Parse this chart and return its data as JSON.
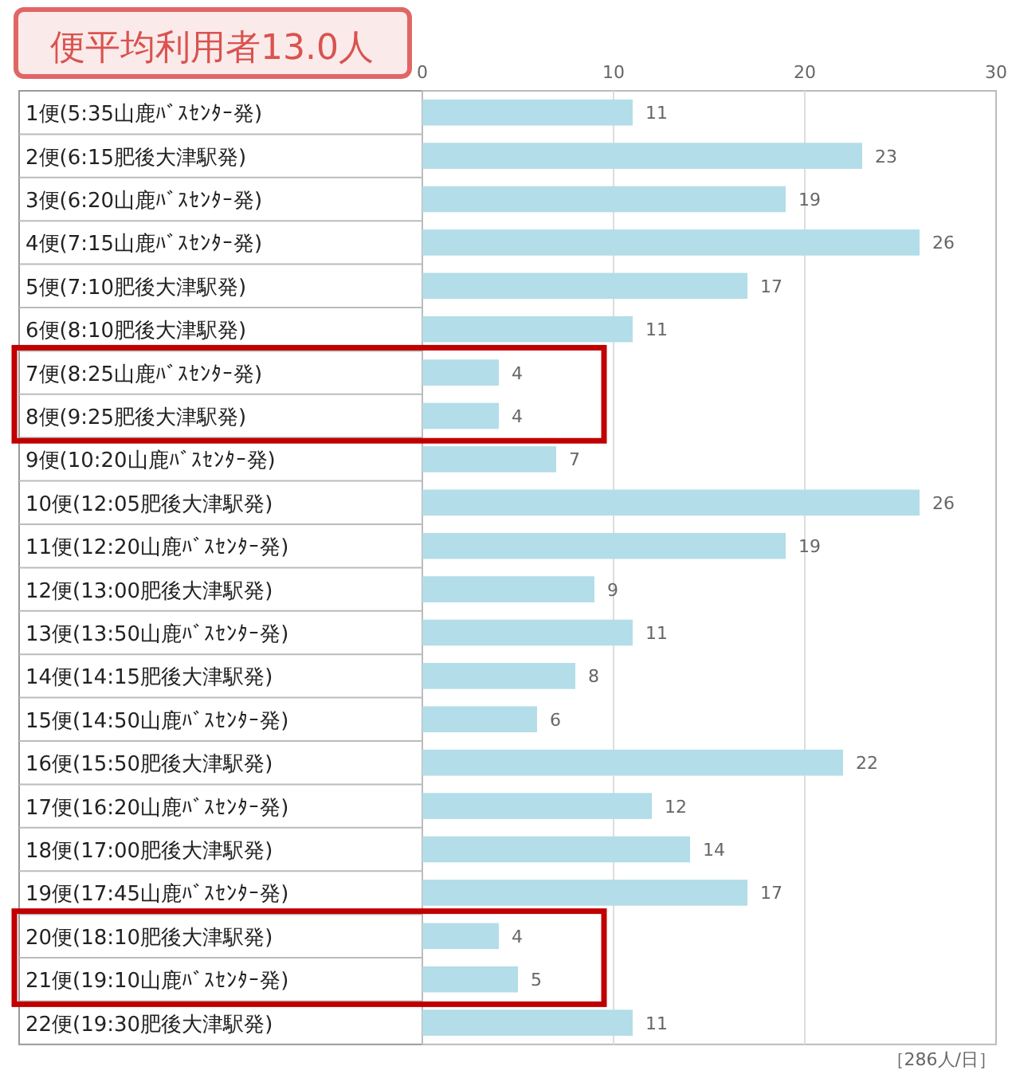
{
  "chart_data": {
    "type": "bar",
    "orientation": "horizontal",
    "title": "便平均利用者13.0人",
    "categories": [
      "1便(5:35山鹿ﾊﾞｽｾﾝﾀｰ発)",
      "2便(6:15肥後大津駅発)",
      "3便(6:20山鹿ﾊﾞｽｾﾝﾀｰ発)",
      "4便(7:15山鹿ﾊﾞｽｾﾝﾀｰ発)",
      "5便(7:10肥後大津駅発)",
      "6便(8:10肥後大津駅発)",
      "7便(8:25山鹿ﾊﾞｽｾﾝﾀｰ発)",
      "8便(9:25肥後大津駅発)",
      "9便(10:20山鹿ﾊﾞｽｾﾝﾀｰ発)",
      "10便(12:05肥後大津駅発)",
      "11便(12:20山鹿ﾊﾞｽｾﾝﾀｰ発)",
      "12便(13:00肥後大津駅発)",
      "13便(13:50山鹿ﾊﾞｽｾﾝﾀｰ発)",
      "14便(14:15肥後大津駅発)",
      "15便(14:50山鹿ﾊﾞｽｾﾝﾀｰ発)",
      "16便(15:50肥後大津駅発)",
      "17便(16:20山鹿ﾊﾞｽｾﾝﾀｰ発)",
      "18便(17:00肥後大津駅発)",
      "19便(17:45山鹿ﾊﾞｽｾﾝﾀｰ発)",
      "20便(18:10肥後大津駅発)",
      "21便(19:10山鹿ﾊﾞｽｾﾝﾀｰ発)",
      "22便(19:30肥後大津駅発)"
    ],
    "values": [
      11,
      23,
      19,
      26,
      17,
      11,
      4,
      4,
      7,
      26,
      19,
      9,
      11,
      8,
      6,
      22,
      12,
      14,
      17,
      4,
      5,
      11
    ],
    "color": "#b3dde8",
    "data_labels": true,
    "xlim": [
      0,
      30
    ],
    "xticks": [
      0,
      10,
      20,
      30
    ],
    "grid": "x",
    "annotations": [
      "［286人/日］"
    ]
  }
}
